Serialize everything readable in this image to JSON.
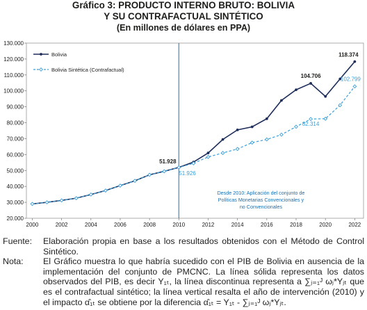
{
  "title": {
    "line1": "Gráfico 3: PRODUCTO INTERNO BRUTO: BOLIVIA",
    "line2": "Y SU CONTRAFACTUAL SINTÉTICO",
    "line3": "(En millones de dólares en PPA)"
  },
  "chart_data": {
    "type": "line",
    "x": [
      2000,
      2001,
      2002,
      2003,
      2004,
      2005,
      2006,
      2007,
      2008,
      2009,
      2010,
      2011,
      2012,
      2013,
      2014,
      2015,
      2016,
      2017,
      2018,
      2019,
      2020,
      2021,
      2022
    ],
    "series": [
      {
        "name": "Bolivia",
        "color": "#1f2d5a",
        "style": "solid",
        "values": [
          29.0,
          30.0,
          31.2,
          32.6,
          34.9,
          37.4,
          40.5,
          43.5,
          47.3,
          49.5,
          51.928,
          55.3,
          61.0,
          69.5,
          75.5,
          77.4,
          82.5,
          94.0,
          100.7,
          104.706,
          96.5,
          107.5,
          118.374
        ]
      },
      {
        "name": "Bolivia Sintética (Contrafactual)",
        "color": "#3a9fd6",
        "style": "dashed",
        "values": [
          29.0,
          30.0,
          31.2,
          32.6,
          34.9,
          37.4,
          40.5,
          43.5,
          47.3,
          49.5,
          51.926,
          54.5,
          58.5,
          61.0,
          63.5,
          67.5,
          69.5,
          72.5,
          77.5,
          82.314,
          82.5,
          91.0,
          102.799
        ]
      }
    ],
    "data_labels": [
      {
        "series": 0,
        "x": 2010,
        "text": "51.928"
      },
      {
        "series": 1,
        "x": 2010,
        "text": "51.926"
      },
      {
        "series": 0,
        "x": 2019,
        "text": "104.706"
      },
      {
        "series": 1,
        "x": 2019,
        "text": "82.314"
      },
      {
        "series": 0,
        "x": 2022,
        "text": "118.374"
      },
      {
        "series": 1,
        "x": 2022,
        "text": "102.799"
      }
    ],
    "x_ticks": [
      "2000",
      "2002",
      "2004",
      "2006",
      "2008",
      "2010",
      "2012",
      "2014",
      "2016",
      "2018",
      "2020",
      "2022"
    ],
    "y_ticks": [
      "20.000",
      "30.000",
      "40.000",
      "50.000",
      "60.000",
      "70.000",
      "80.000",
      "90.000",
      "100.000",
      "110.000",
      "120.000",
      "130.000"
    ],
    "xlim": [
      1999.6,
      2022.6
    ],
    "ylim": [
      20,
      130
    ],
    "vertical_line_x": 2010,
    "annotation": [
      "Desde 2010: Aplicación del conjunto de",
      "Políticas Monetarias Convencionales y",
      "no Convencionales"
    ],
    "legend_position": "top-left",
    "grid": false
  },
  "notes": {
    "fuente_label": "Fuente:",
    "fuente_text": "Elaboración propia en base a los resultados obtenidos con el Método de Control Sintético.",
    "nota_label": "Nota:",
    "nota_text": "El Gráfico muestra lo que habría sucedido con el PIB de Bolivia en ausencia de la implementación del conjunto de PMCNC. La línea sólida representa los datos observados del PIB, es decir Y₁ₜ, la línea discontinua representa a ∑ⱼ₌₁ᴶ ωⱼ*Yⱼₜ que es el contrafactual sintético; la línea vertical resalta el año de intervención (2010) y el impacto α̂₁ₜ se obtiene por la diferencia α̂₁ₜ = Y₁ₜ - ∑ⱼ₌₁ᴶ ωⱼ*Yⱼₜ."
  }
}
